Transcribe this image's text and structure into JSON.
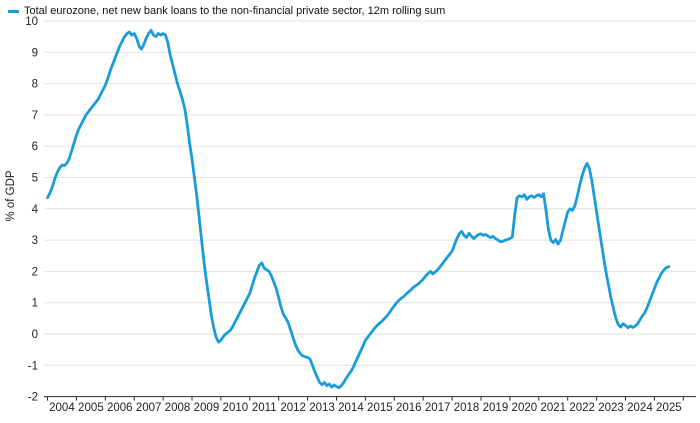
{
  "chart_data": {
    "type": "line",
    "legend": "Total eurozone, net new bank loans to the non-financial private sector, 12m rolling sum",
    "ylabel": "% of GDP",
    "ylim": [
      -2,
      10
    ],
    "yticks": [
      10,
      9,
      8,
      7,
      6,
      5,
      4,
      3,
      2,
      1,
      0,
      -1,
      -2
    ],
    "xtick_labels": [
      "2004",
      "2005",
      "2006",
      "2007",
      "2008",
      "2009",
      "2010",
      "2011",
      "2012",
      "2013",
      "2014",
      "2015",
      "2016",
      "2017",
      "2018",
      "2019",
      "2020",
      "2021",
      "2022",
      "2023",
      "2024",
      "2025"
    ],
    "x_range_years": [
      2004.0,
      2025.5
    ],
    "grid": "horizontal",
    "legend_position": "top-left",
    "colors": {
      "line": "#1a9cd8",
      "grid": "#e2e2e2",
      "axis": "#2a2a2a",
      "text": "#1f1f1f",
      "background": "#ffffff"
    },
    "series": [
      {
        "name": "Total eurozone, net new bank loans to the non-financial private sector, 12m rolling sum",
        "color": "#1a9cd8",
        "frequency": "monthly",
        "unit": "% of GDP",
        "values_by_year": {
          "2004": [
            4.35,
            4.5,
            4.7,
            4.95,
            5.15,
            5.3,
            5.4,
            5.38,
            5.45,
            5.6,
            5.85,
            6.1
          ],
          "2005": [
            6.35,
            6.55,
            6.7,
            6.85,
            7.0,
            7.1,
            7.2,
            7.3,
            7.4,
            7.5,
            7.65,
            7.8
          ],
          "2006": [
            7.95,
            8.15,
            8.4,
            8.6,
            8.8,
            9.0,
            9.2,
            9.35,
            9.5,
            9.6,
            9.65,
            9.55
          ],
          "2007": [
            9.6,
            9.45,
            9.2,
            9.1,
            9.25,
            9.45,
            9.6,
            9.7,
            9.55,
            9.5,
            9.6,
            9.55
          ],
          "2008": [
            9.6,
            9.55,
            9.3,
            8.9,
            8.6,
            8.3,
            8.0,
            7.75,
            7.5,
            7.2,
            6.7,
            6.1
          ],
          "2009": [
            5.6,
            5.0,
            4.4,
            3.7,
            3.0,
            2.3,
            1.7,
            1.15,
            0.6,
            0.2,
            -0.1,
            -0.26
          ],
          "2010": [
            -0.2,
            -0.08,
            0.0,
            0.06,
            0.12,
            0.25,
            0.4,
            0.55,
            0.7,
            0.85,
            1.0,
            1.15
          ],
          "2011": [
            1.3,
            1.55,
            1.8,
            2.0,
            2.2,
            2.27,
            2.1,
            2.05,
            2.0,
            1.85,
            1.65,
            1.45
          ],
          "2012": [
            1.15,
            0.85,
            0.62,
            0.5,
            0.35,
            0.12,
            -0.12,
            -0.35,
            -0.52,
            -0.63,
            -0.7,
            -0.73
          ],
          "2013": [
            -0.75,
            -0.8,
            -1.0,
            -1.2,
            -1.38,
            -1.55,
            -1.62,
            -1.55,
            -1.65,
            -1.6,
            -1.7,
            -1.63
          ],
          "2014": [
            -1.68,
            -1.72,
            -1.65,
            -1.55,
            -1.42,
            -1.3,
            -1.2,
            -1.05,
            -0.88,
            -0.72,
            -0.55,
            -0.38
          ],
          "2015": [
            -0.2,
            -0.1,
            0.0,
            0.1,
            0.2,
            0.28,
            0.35,
            0.42,
            0.5,
            0.58,
            0.68,
            0.8
          ],
          "2016": [
            0.9,
            1.0,
            1.08,
            1.15,
            1.2,
            1.28,
            1.35,
            1.42,
            1.5,
            1.55,
            1.6,
            1.68
          ],
          "2017": [
            1.75,
            1.85,
            1.93,
            2.0,
            1.92,
            1.98,
            2.05,
            2.15,
            2.25,
            2.35,
            2.45,
            2.55
          ],
          "2018": [
            2.65,
            2.85,
            3.05,
            3.2,
            3.28,
            3.15,
            3.08,
            3.22,
            3.12,
            3.05,
            3.12,
            3.18
          ],
          "2019": [
            3.2,
            3.15,
            3.18,
            3.12,
            3.08,
            3.12,
            3.05,
            3.0,
            2.95,
            2.96,
            3.0,
            3.02
          ],
          "2020": [
            3.05,
            3.1,
            3.8,
            4.35,
            4.42,
            4.38,
            4.45,
            4.3,
            4.38,
            4.42,
            4.36,
            4.42
          ],
          "2021": [
            4.45,
            4.38,
            4.48,
            3.95,
            3.35,
            3.0,
            2.92,
            3.02,
            2.88,
            3.0,
            3.3,
            3.6
          ],
          "2022": [
            3.9,
            4.0,
            3.95,
            4.1,
            4.4,
            4.75,
            5.05,
            5.3,
            5.45,
            5.3,
            4.9,
            4.4
          ],
          "2023": [
            3.9,
            3.4,
            2.9,
            2.4,
            1.95,
            1.55,
            1.15,
            0.8,
            0.5,
            0.3,
            0.22,
            0.33
          ],
          "2024": [
            0.27,
            0.2,
            0.26,
            0.21,
            0.25,
            0.32,
            0.45,
            0.58,
            0.68,
            0.85,
            1.05,
            1.25
          ],
          "2025": [
            1.45,
            1.65,
            1.8,
            1.95,
            2.05,
            2.12,
            2.15
          ]
        }
      }
    ]
  }
}
